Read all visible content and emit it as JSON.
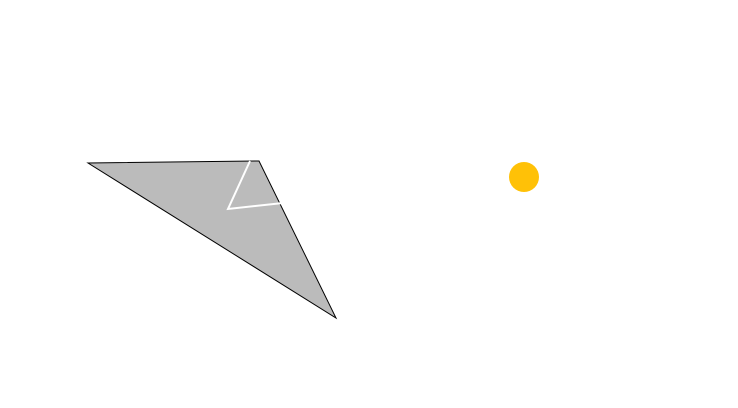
{
  "scene": {
    "background_color": "#ffffff",
    "shape": {
      "kind": "triangle",
      "fill_color": "#bbbbbb",
      "outline_color": "#000000",
      "marker_color": "#ffffff"
    },
    "target": {
      "kind": "circle",
      "color": "#ffc107"
    }
  }
}
